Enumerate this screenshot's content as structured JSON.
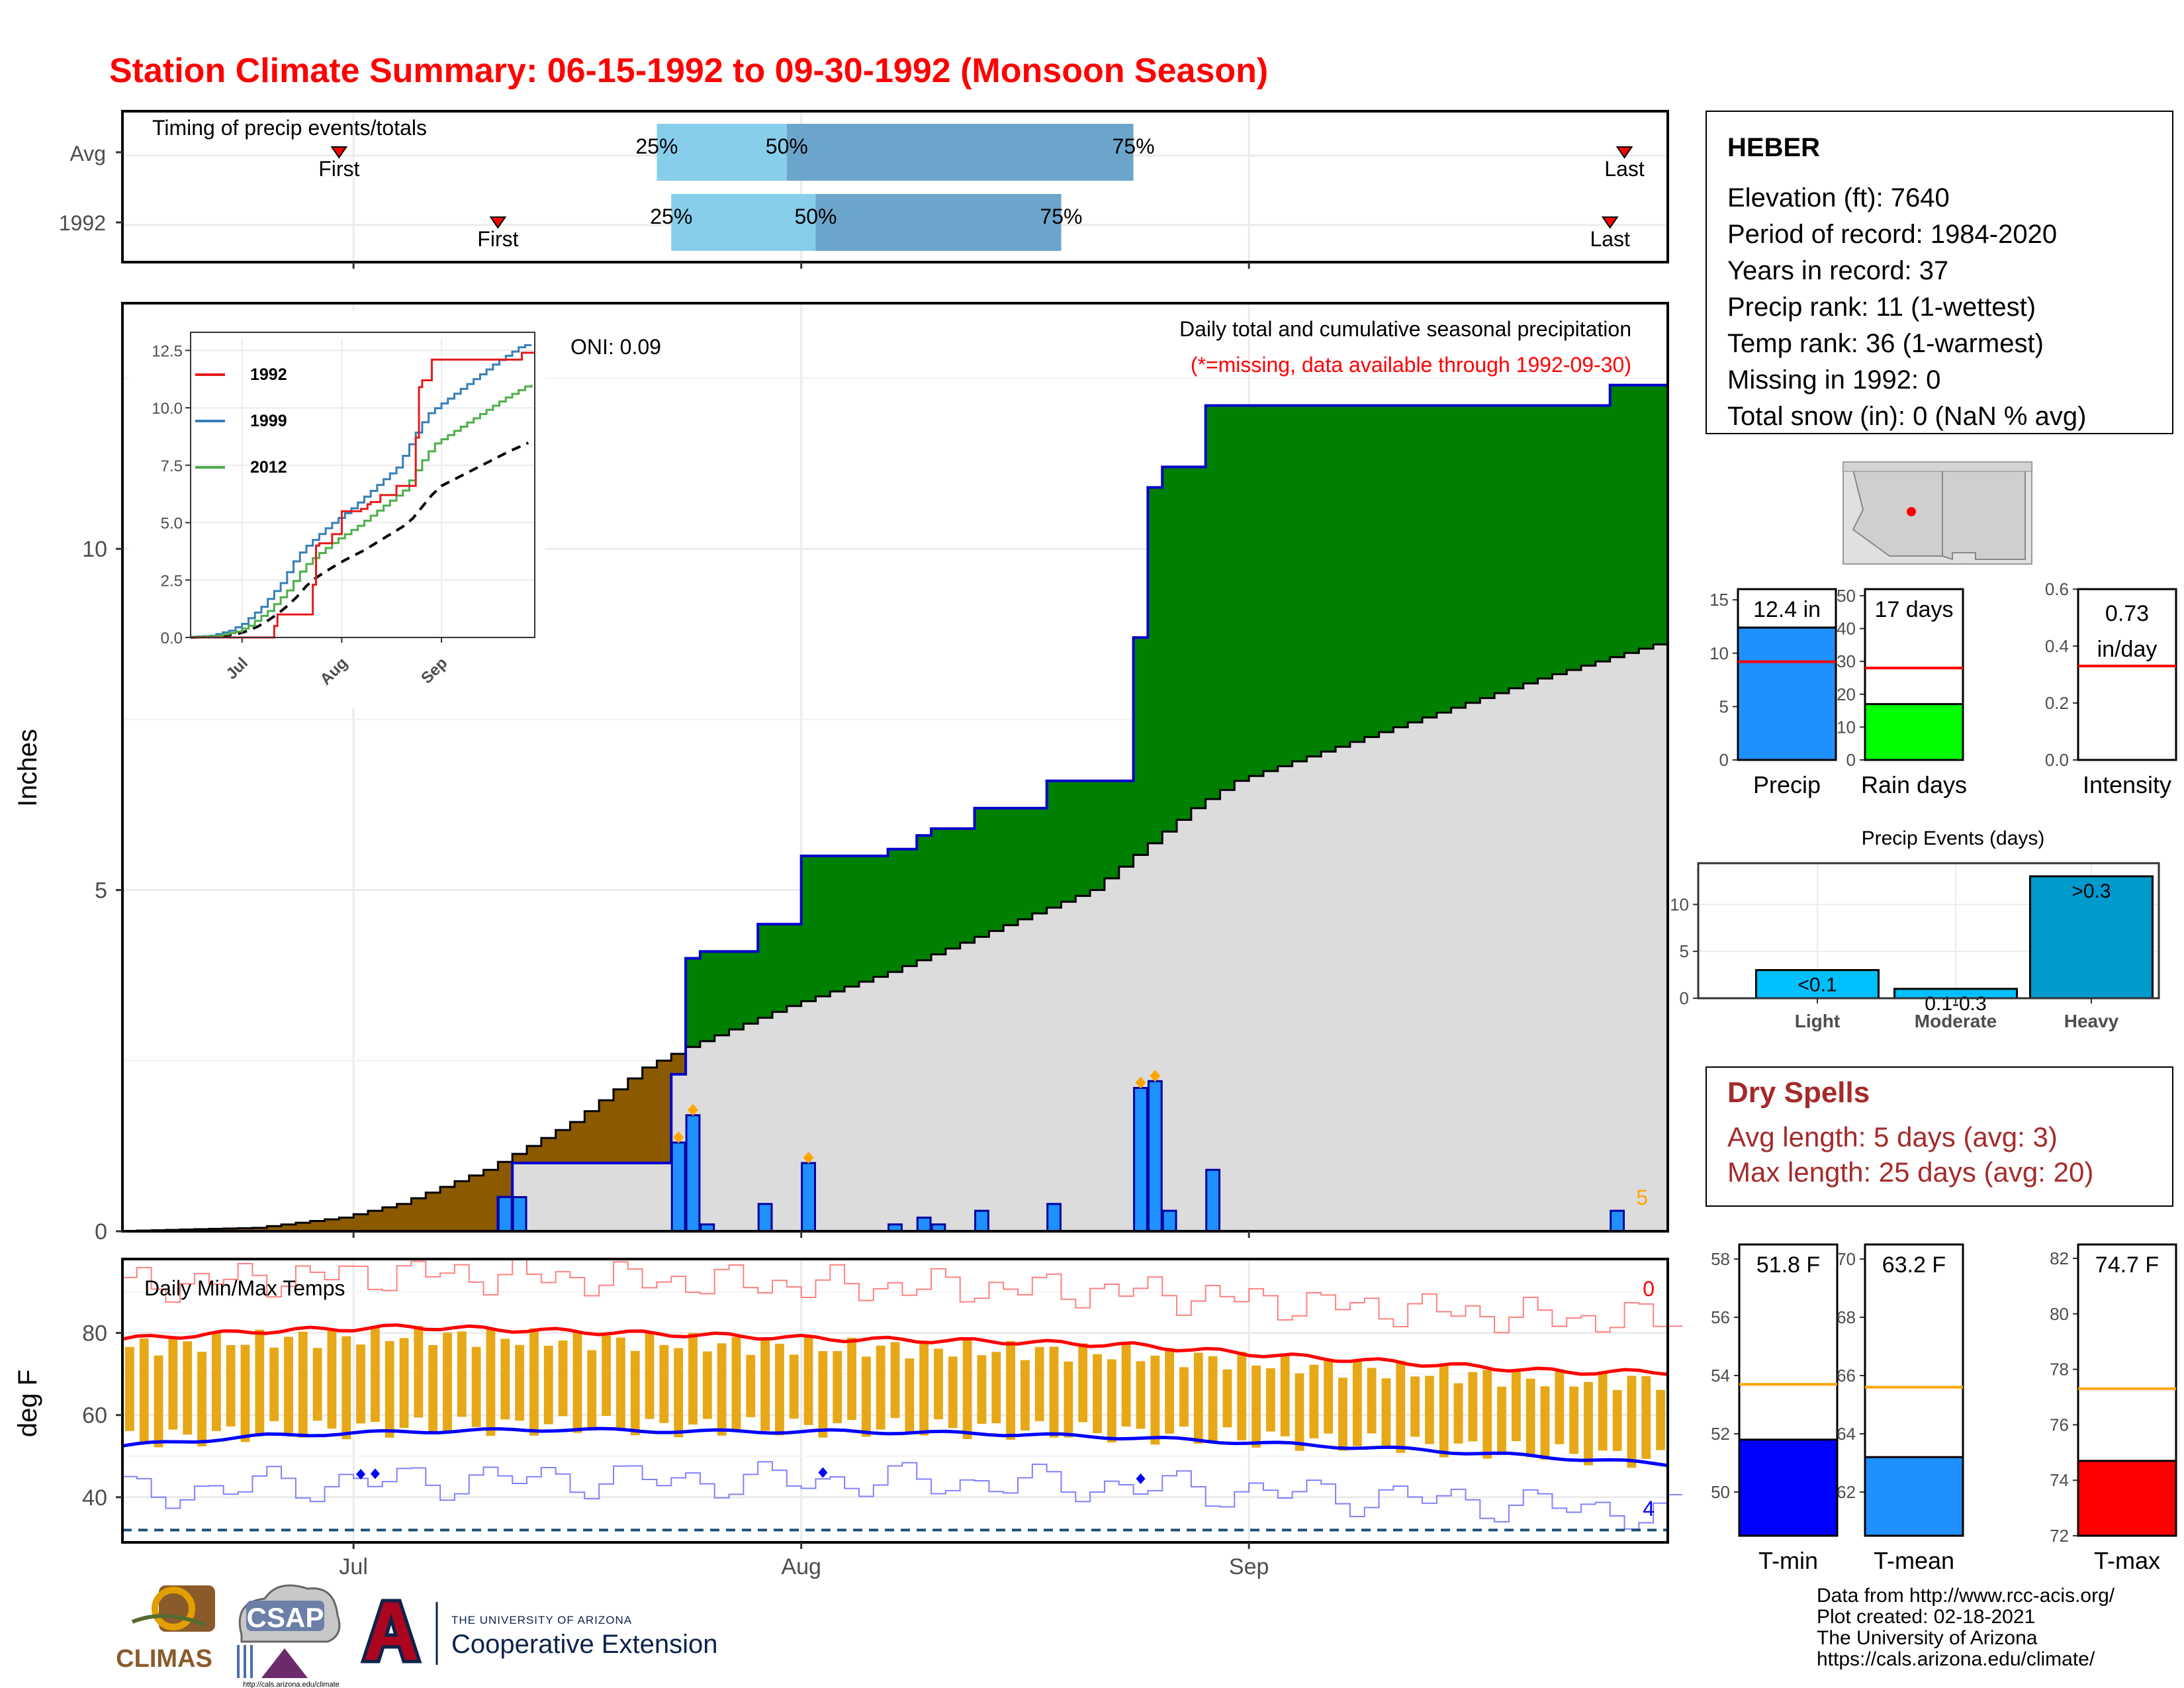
{
  "title": "Station Climate Summary: 06-15-1992 to 09-30-1992 (Monsoon Season)",
  "colors": {
    "title": "#ff0000",
    "q1": "#87ceeb",
    "q2": "#6ca5cc",
    "precip_bar": "#1e90ff",
    "avg_fill": "#dcdcdc",
    "surplus": "#008000",
    "deficit": "#8b5a00",
    "cum_line": "#0000cd",
    "tmin": "#0000ff",
    "tmean": "#1e90ff",
    "tmax": "#ff0000",
    "rain_days": "#00ff00",
    "events": "#009acd",
    "events_light": "#00bfff",
    "dry_spell_text": "#a52a2a",
    "temp_bar": "#e6a817",
    "avg_line": "#ffa500"
  },
  "timing": {
    "label": "Timing of precip events/totals",
    "rows": [
      {
        "name": "Avg",
        "first": "First",
        "last": "Last",
        "first_date": "1992-06-30",
        "last_date": "1992-09-27",
        "q25": "1992-07-22",
        "q50": "1992-07-31",
        "q75": "1992-08-24",
        "p25": "25%",
        "p50": "50%",
        "p75": "75%"
      },
      {
        "name": "1992",
        "first": "First",
        "last": "Last",
        "first_date": "1992-07-11",
        "last_date": "1992-09-26",
        "q25": "1992-07-23",
        "q50": "1992-08-02",
        "q75": "1992-08-19",
        "p25": "25%",
        "p50": "50%",
        "p75": "75%"
      }
    ]
  },
  "station": {
    "name": "HEBER",
    "lines": [
      "Elevation (ft): 7640",
      "Period of record: 1984-2020",
      "Years in record: 37",
      "Precip rank: 11 (1-wettest)",
      "Temp rank: 36 (1-warmest)",
      "Missing in 1992: 0",
      "Total snow (in): 0 (NaN % avg)"
    ]
  },
  "main_panel": {
    "ylabel": "Inches",
    "yticks": [
      "0",
      "5",
      "10"
    ],
    "xticks": [
      "Jul",
      "Aug",
      "Sep"
    ],
    "oni": "ONI: 0.09",
    "caption": "Daily total and cumulative seasonal precipitation",
    "missing_note": "(*=missing, data available through 1992-09-30)",
    "corner_value": "5"
  },
  "inset": {
    "series": [
      "1992",
      "1999",
      "2012"
    ],
    "colors": [
      "#e41a1c",
      "#377eb8",
      "#4daf4a"
    ],
    "yticks": [
      "0.0",
      "2.5",
      "5.0",
      "7.5",
      "10.0",
      "12.5"
    ],
    "xticks": [
      "Jul",
      "Aug",
      "Sep"
    ]
  },
  "temp_panel": {
    "label": "Daily Min/Max Temps",
    "ylabel": "deg F",
    "yticks": [
      "40",
      "60",
      "80"
    ],
    "corner_top": "0",
    "corner_bottom": "4"
  },
  "mini_bars": [
    {
      "label": "Precip",
      "value_text": "12.4 in",
      "value": 12.4,
      "avg": 9.2,
      "ylim": [
        0,
        16
      ],
      "yticks": [
        "0",
        "5",
        "10",
        "15"
      ],
      "color": "#1e90ff"
    },
    {
      "label": "Rain days",
      "value_text": "17 days",
      "value": 17,
      "avg": 28,
      "ylim": [
        0,
        52
      ],
      "yticks": [
        "0",
        "10",
        "20",
        "30",
        "40",
        "50"
      ],
      "color": "#00ff00"
    },
    {
      "label": "Intensity",
      "value_text": "0.73 in/day",
      "value_line1": "0.73",
      "value_line2": "in/day",
      "value": 0.73,
      "avg": 0.33,
      "ylim": [
        0,
        0.6
      ],
      "yticks": [
        "0.0",
        "0.2",
        "0.4",
        "0.6"
      ],
      "color": "#ffffff"
    }
  ],
  "events": {
    "title": "Precip Events (days)",
    "categories": [
      "Light",
      "Moderate",
      "Heavy"
    ],
    "values": [
      3,
      1,
      13
    ],
    "bar_labels": [
      "<0.1",
      "0.1-0.3",
      ">0.3"
    ],
    "yticks": [
      "0",
      "5",
      "10"
    ]
  },
  "dry_spells": {
    "title": "Dry Spells",
    "avg": "Avg length: 5 days (avg: 3)",
    "max": "Max length: 25 days (avg: 20)"
  },
  "temp_bars": [
    {
      "label": "T-min",
      "value_text": "51.8 F",
      "value": 51.8,
      "avg": 53.7,
      "ylim": [
        48.5,
        58.5
      ],
      "yticks": [
        "50",
        "52",
        "54",
        "56",
        "58"
      ],
      "color": "#0000ff"
    },
    {
      "label": "T-mean",
      "value_text": "63.2 F",
      "value": 63.2,
      "avg": 65.6,
      "ylim": [
        60.5,
        70.5
      ],
      "yticks": [
        "62",
        "64",
        "66",
        "68",
        "70"
      ],
      "color": "#1e90ff"
    },
    {
      "label": "T-max",
      "value_text": "74.7 F",
      "value": 74.7,
      "avg": 77.3,
      "ylim": [
        72,
        82.5
      ],
      "yticks": [
        "72",
        "74",
        "76",
        "78",
        "80",
        "82"
      ],
      "color": "#ff0000"
    }
  ],
  "footer": {
    "lines": [
      "Data from http://www.rcc-acis.org/",
      "Plot created: 02-18-2021",
      "The University of Arizona",
      "https://cals.arizona.edu/climate/"
    ],
    "logo1": "CLIMAS",
    "logo2": "CSAP",
    "logo2_url": "http://cals.arizona.edu/climate",
    "logo3_line1": "THE UNIVERSITY OF ARIZONA",
    "logo3_line2": "Cooperative Extension"
  },
  "chart_data": {
    "type": "area",
    "title": "Station Climate Summary: 06-15-1992 to 09-30-1992 (Monsoon Season)",
    "ylabel": "Inches",
    "x_range": [
      "1992-06-15",
      "1992-09-30"
    ],
    "ylim": [
      0,
      13.6
    ],
    "daily_precip": [
      {
        "date": "1992-07-11",
        "value": 0.5
      },
      {
        "date": "1992-07-12",
        "value": 0.5
      },
      {
        "date": "1992-07-23",
        "value": 1.3
      },
      {
        "date": "1992-07-24",
        "value": 1.7
      },
      {
        "date": "1992-07-25",
        "value": 0.1
      },
      {
        "date": "1992-07-29",
        "value": 0.4
      },
      {
        "date": "1992-08-01",
        "value": 1.0
      },
      {
        "date": "1992-08-07",
        "value": 0.1
      },
      {
        "date": "1992-08-09",
        "value": 0.2
      },
      {
        "date": "1992-08-10",
        "value": 0.1
      },
      {
        "date": "1992-08-13",
        "value": 0.3
      },
      {
        "date": "1992-08-18",
        "value": 0.4
      },
      {
        "date": "1992-08-24",
        "value": 2.1
      },
      {
        "date": "1992-08-25",
        "value": 2.2
      },
      {
        "date": "1992-08-26",
        "value": 0.3
      },
      {
        "date": "1992-08-29",
        "value": 0.9
      },
      {
        "date": "1992-09-26",
        "value": 0.3
      }
    ],
    "cumulative_1992_steps": [
      {
        "date": "1992-06-15",
        "value": 0.0
      },
      {
        "date": "1992-07-11",
        "value": 0.5
      },
      {
        "date": "1992-07-12",
        "value": 1.0
      },
      {
        "date": "1992-07-23",
        "value": 2.3
      },
      {
        "date": "1992-07-24",
        "value": 4.0
      },
      {
        "date": "1992-07-25",
        "value": 4.1
      },
      {
        "date": "1992-07-29",
        "value": 4.5
      },
      {
        "date": "1992-08-01",
        "value": 5.5
      },
      {
        "date": "1992-08-07",
        "value": 5.6
      },
      {
        "date": "1992-08-09",
        "value": 5.8
      },
      {
        "date": "1992-08-10",
        "value": 5.9
      },
      {
        "date": "1992-08-13",
        "value": 6.2
      },
      {
        "date": "1992-08-18",
        "value": 6.6
      },
      {
        "date": "1992-08-24",
        "value": 8.7
      },
      {
        "date": "1992-08-25",
        "value": 10.9
      },
      {
        "date": "1992-08-26",
        "value": 11.2
      },
      {
        "date": "1992-08-29",
        "value": 12.1
      },
      {
        "date": "1992-09-26",
        "value": 12.4
      }
    ],
    "average_cumulative": [
      {
        "date": "1992-06-15",
        "value": 0.0
      },
      {
        "date": "1992-06-25",
        "value": 0.05
      },
      {
        "date": "1992-07-01",
        "value": 0.2
      },
      {
        "date": "1992-07-05",
        "value": 0.4
      },
      {
        "date": "1992-07-11",
        "value": 0.9
      },
      {
        "date": "1992-07-17",
        "value": 1.6
      },
      {
        "date": "1992-07-22",
        "value": 2.4
      },
      {
        "date": "1992-07-25",
        "value": 2.7
      },
      {
        "date": "1992-08-01",
        "value": 3.3
      },
      {
        "date": "1992-08-08",
        "value": 3.8
      },
      {
        "date": "1992-08-15",
        "value": 4.4
      },
      {
        "date": "1992-08-22",
        "value": 5.0
      },
      {
        "date": "1992-08-29",
        "value": 6.2
      },
      {
        "date": "1992-09-01",
        "value": 6.6
      },
      {
        "date": "1992-09-08",
        "value": 7.1
      },
      {
        "date": "1992-09-15",
        "value": 7.6
      },
      {
        "date": "1992-09-22",
        "value": 8.1
      },
      {
        "date": "1992-09-30",
        "value": 8.6
      }
    ],
    "temps": {
      "tmax_trend": [
        {
          "date": "1992-06-15",
          "value": 78.5
        },
        {
          "date": "1992-06-25",
          "value": 80.5
        },
        {
          "date": "1992-07-05",
          "value": 81.5
        },
        {
          "date": "1992-07-15",
          "value": 80.5
        },
        {
          "date": "1992-07-25",
          "value": 79.5
        },
        {
          "date": "1992-08-04",
          "value": 78.5
        },
        {
          "date": "1992-08-14",
          "value": 78.0
        },
        {
          "date": "1992-08-24",
          "value": 77.0
        },
        {
          "date": "1992-09-03",
          "value": 74.5
        },
        {
          "date": "1992-09-13",
          "value": 72.5
        },
        {
          "date": "1992-09-23",
          "value": 70.5
        },
        {
          "date": "1992-09-30",
          "value": 70.5
        }
      ],
      "tmin_trend": [
        {
          "date": "1992-06-15",
          "value": 52.5
        },
        {
          "date": "1992-06-25",
          "value": 55.0
        },
        {
          "date": "1992-07-05",
          "value": 56.0
        },
        {
          "date": "1992-07-15",
          "value": 56.5
        },
        {
          "date": "1992-07-25",
          "value": 56.0
        },
        {
          "date": "1992-08-04",
          "value": 56.0
        },
        {
          "date": "1992-08-14",
          "value": 55.5
        },
        {
          "date": "1992-08-24",
          "value": 54.5
        },
        {
          "date": "1992-09-03",
          "value": 53.0
        },
        {
          "date": "1992-09-13",
          "value": 51.5
        },
        {
          "date": "1992-09-23",
          "value": 49.5
        },
        {
          "date": "1992-09-30",
          "value": 48.0
        }
      ],
      "ylim": [
        29,
        98
      ]
    }
  }
}
